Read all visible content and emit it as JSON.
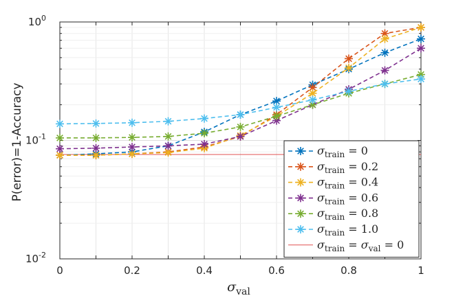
{
  "chart_data": {
    "type": "line",
    "title": "",
    "xlabel": "σ",
    "xlabel_sub": "val",
    "ylabel": "P(error)=1-Accuracy",
    "xlim": [
      0,
      1
    ],
    "ylim": [
      0.01,
      1
    ],
    "yscale": "log",
    "grid": true,
    "legend_position": "bottom-right",
    "x": [
      0,
      0.1,
      0.2,
      0.3,
      0.4,
      0.5,
      0.6,
      0.7,
      0.8,
      0.9,
      1
    ],
    "x_tick_labels": [
      "0",
      "0.2",
      "0.4",
      "0.6",
      "0.8",
      "1"
    ],
    "y_tick_labels": [
      {
        "base": "10",
        "exp": "0"
      },
      {
        "base": "10",
        "exp": "-1"
      },
      {
        "base": "10",
        "exp": "-2"
      }
    ],
    "series": [
      {
        "name": "σtrain = 0",
        "legend_sym": "σ",
        "legend_sub": "train",
        "legend_val": " = 0",
        "color": "#0072BD",
        "values": [
          0.075,
          0.077,
          0.08,
          0.09,
          0.118,
          0.165,
          0.215,
          0.295,
          0.4,
          0.55,
          0.72
        ]
      },
      {
        "name": "σtrain = 0.2",
        "legend_sym": "σ",
        "legend_sub": "train",
        "legend_val": " = 0.2",
        "color": "#D95319",
        "values": [
          0.075,
          0.075,
          0.077,
          0.08,
          0.088,
          0.108,
          0.165,
          0.28,
          0.49,
          0.8,
          0.9
        ]
      },
      {
        "name": "σtrain = 0.4",
        "legend_sym": "σ",
        "legend_sub": "train",
        "legend_val": " = 0.4",
        "color": "#EDB120",
        "values": [
          0.075,
          0.075,
          0.077,
          0.079,
          0.086,
          0.11,
          0.16,
          0.25,
          0.41,
          0.72,
          0.9
        ]
      },
      {
        "name": "σtrain = 0.6",
        "legend_sym": "σ",
        "legend_sub": "train",
        "legend_val": " = 0.6",
        "color": "#7E2F8E",
        "values": [
          0.085,
          0.086,
          0.088,
          0.09,
          0.093,
          0.108,
          0.147,
          0.2,
          0.27,
          0.39,
          0.6
        ]
      },
      {
        "name": "σtrain = 0.8",
        "legend_sym": "σ",
        "legend_sub": "train",
        "legend_val": " = 0.8",
        "color": "#77AC30",
        "values": [
          0.105,
          0.105,
          0.106,
          0.108,
          0.115,
          0.13,
          0.16,
          0.2,
          0.25,
          0.3,
          0.36
        ]
      },
      {
        "name": "σtrain = 1.0",
        "legend_sym": "σ",
        "legend_sub": "train",
        "legend_val": " = 1.0",
        "color": "#4DBEEE",
        "values": [
          0.138,
          0.139,
          0.141,
          0.145,
          0.153,
          0.165,
          0.19,
          0.22,
          0.26,
          0.3,
          0.33
        ]
      }
    ],
    "reference_line": {
      "name": "σtrain = σval = 0",
      "legend_sym": "σ",
      "legend_sub": "train",
      "legend_mid": " = σ",
      "legend_sub2": "val",
      "legend_val": " = 0",
      "color": "#E05050",
      "value": 0.076
    }
  }
}
